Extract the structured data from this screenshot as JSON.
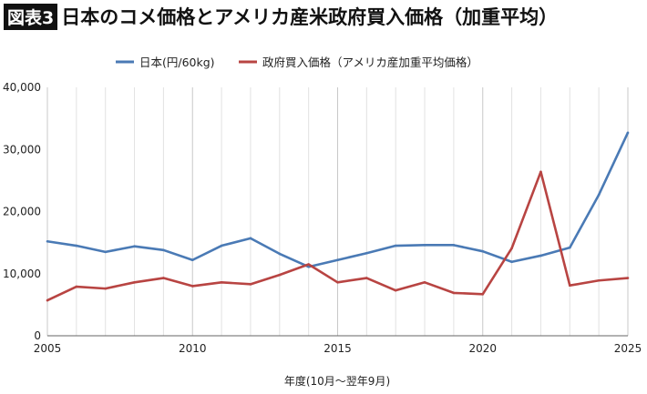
{
  "title": {
    "badge": "図表3",
    "text": "日本のコメ価格とアメリカ産米政府買入価格（加重平均）"
  },
  "chart_data": {
    "type": "line",
    "xlabel": "年度(10月〜翌年9月)",
    "ylabel": "",
    "xlim": [
      2005,
      2025
    ],
    "ylim": [
      0,
      40000
    ],
    "x_ticks": [
      "2005",
      "2010",
      "2015",
      "2020",
      "2025"
    ],
    "y_ticks": [
      "0",
      "10,000",
      "20,000",
      "30,000",
      "40,000"
    ],
    "legend_position": "top-center",
    "grid": "vertical",
    "x": [
      2005,
      2006,
      2007,
      2008,
      2009,
      2010,
      2011,
      2012,
      2013,
      2014,
      2015,
      2016,
      2017,
      2018,
      2019,
      2020,
      2021,
      2022,
      2023,
      2024,
      2025
    ],
    "series": [
      {
        "name": "日本(円/60kg)",
        "color": "#4a7ab5",
        "values": [
          15200,
          14500,
          13500,
          14400,
          13800,
          12200,
          14500,
          15700,
          13200,
          11100,
          12200,
          13300,
          14500,
          14600,
          14600,
          13600,
          11900,
          12900,
          14200,
          22700,
          32700
        ]
      },
      {
        "name": "政府買入価格（アメリカ産加重平均価格）",
        "color": "#b84442",
        "values": [
          5700,
          7900,
          7600,
          8600,
          9300,
          8000,
          8600,
          8300,
          9800,
          11500,
          8600,
          9300,
          7300,
          8600,
          6900,
          6700,
          14100,
          26400,
          8100,
          8900,
          9300
        ]
      }
    ]
  }
}
